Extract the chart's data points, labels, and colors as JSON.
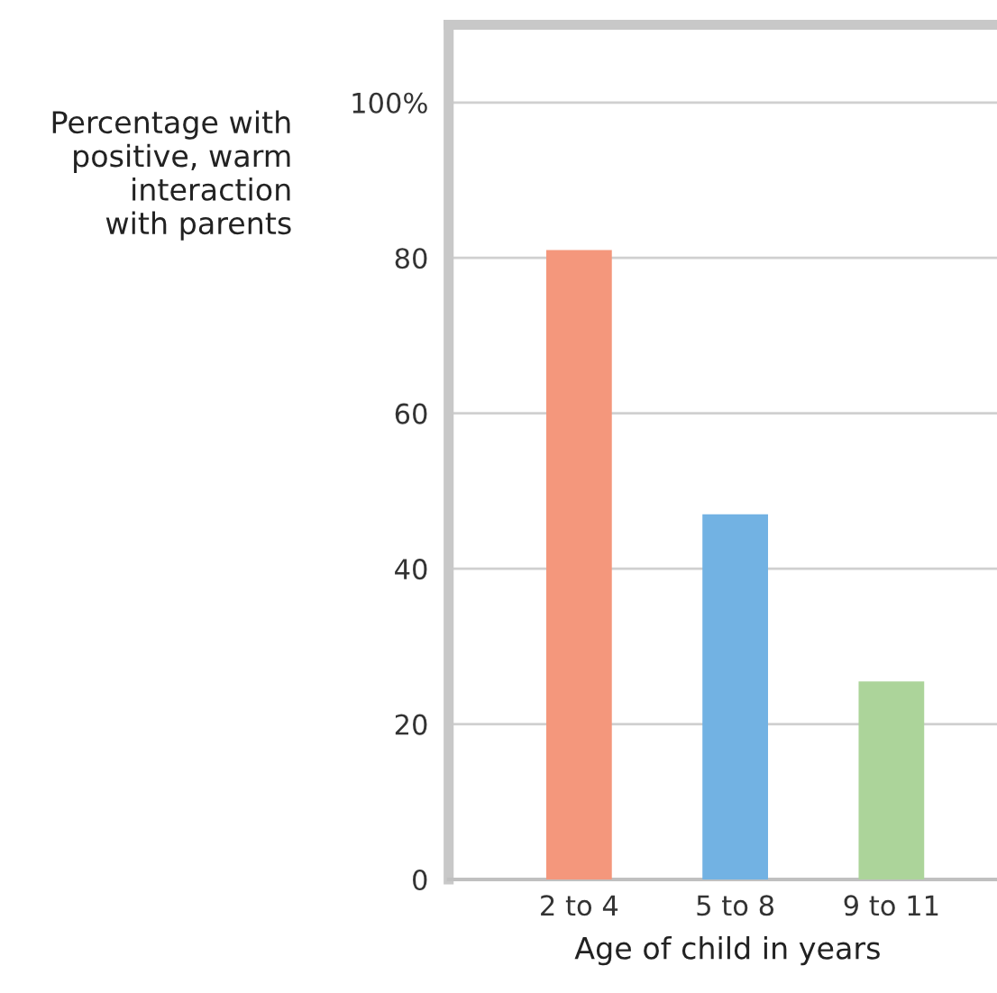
{
  "chart_data": {
    "type": "bar",
    "xlabel": "Age of child in years",
    "ylabel": "Percentage with\npositive, warm\ninteraction\nwith parents",
    "categories": [
      "2 to 4",
      "5 to 8",
      "9 to 11"
    ],
    "values": [
      81,
      47,
      25.5
    ],
    "colors": [
      "#f4977c",
      "#72b2e3",
      "#acd49a"
    ],
    "ylim": [
      0,
      110
    ],
    "yticks": [
      0,
      20,
      40,
      60,
      80,
      {
        "value": 100,
        "label": "100%"
      }
    ],
    "grid": "y"
  }
}
